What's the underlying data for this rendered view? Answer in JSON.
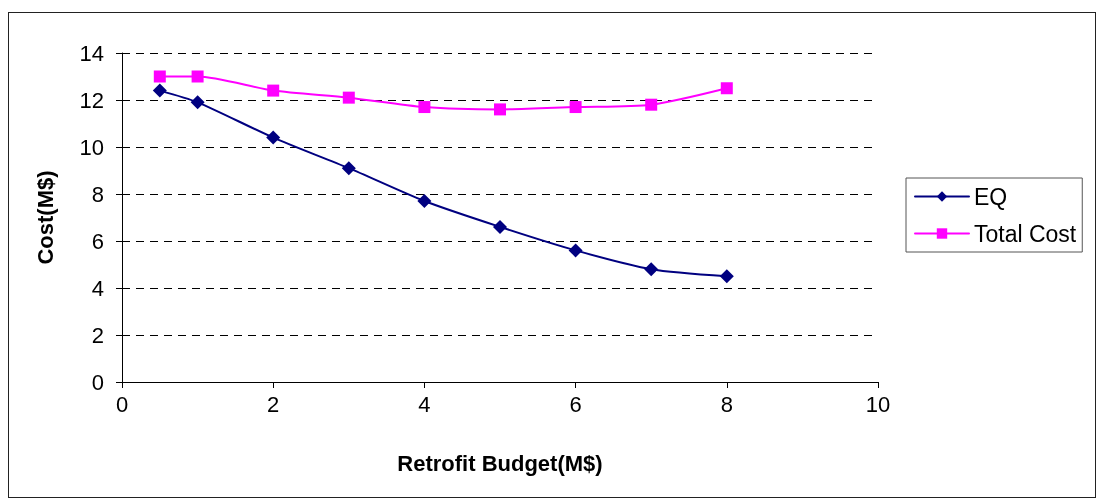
{
  "chart_data": {
    "type": "line",
    "xlabel": "Retrofit Budget(M$)",
    "ylabel": "Cost(M$)",
    "x": [
      0.5,
      1,
      2,
      3,
      4,
      5,
      6,
      7,
      8
    ],
    "series": [
      {
        "name": "EQ",
        "color": "#000080",
        "marker": "diamond",
        "values": [
          12.4,
          11.9,
          10.4,
          9.1,
          7.7,
          6.6,
          5.6,
          4.8,
          4.5
        ]
      },
      {
        "name": "Total Cost",
        "color": "#ff00ff",
        "marker": "square",
        "values": [
          13.0,
          13.0,
          12.4,
          12.1,
          11.7,
          11.6,
          11.7,
          11.8,
          12.5
        ]
      }
    ],
    "xlim": [
      0,
      10
    ],
    "xticks": [
      0,
      2,
      4,
      6,
      8,
      10
    ],
    "ylim": [
      0,
      14
    ],
    "yticks": [
      0,
      2,
      4,
      6,
      8,
      10,
      12,
      14
    ],
    "grid": "y",
    "legend": "right",
    "line_style": "solid"
  }
}
